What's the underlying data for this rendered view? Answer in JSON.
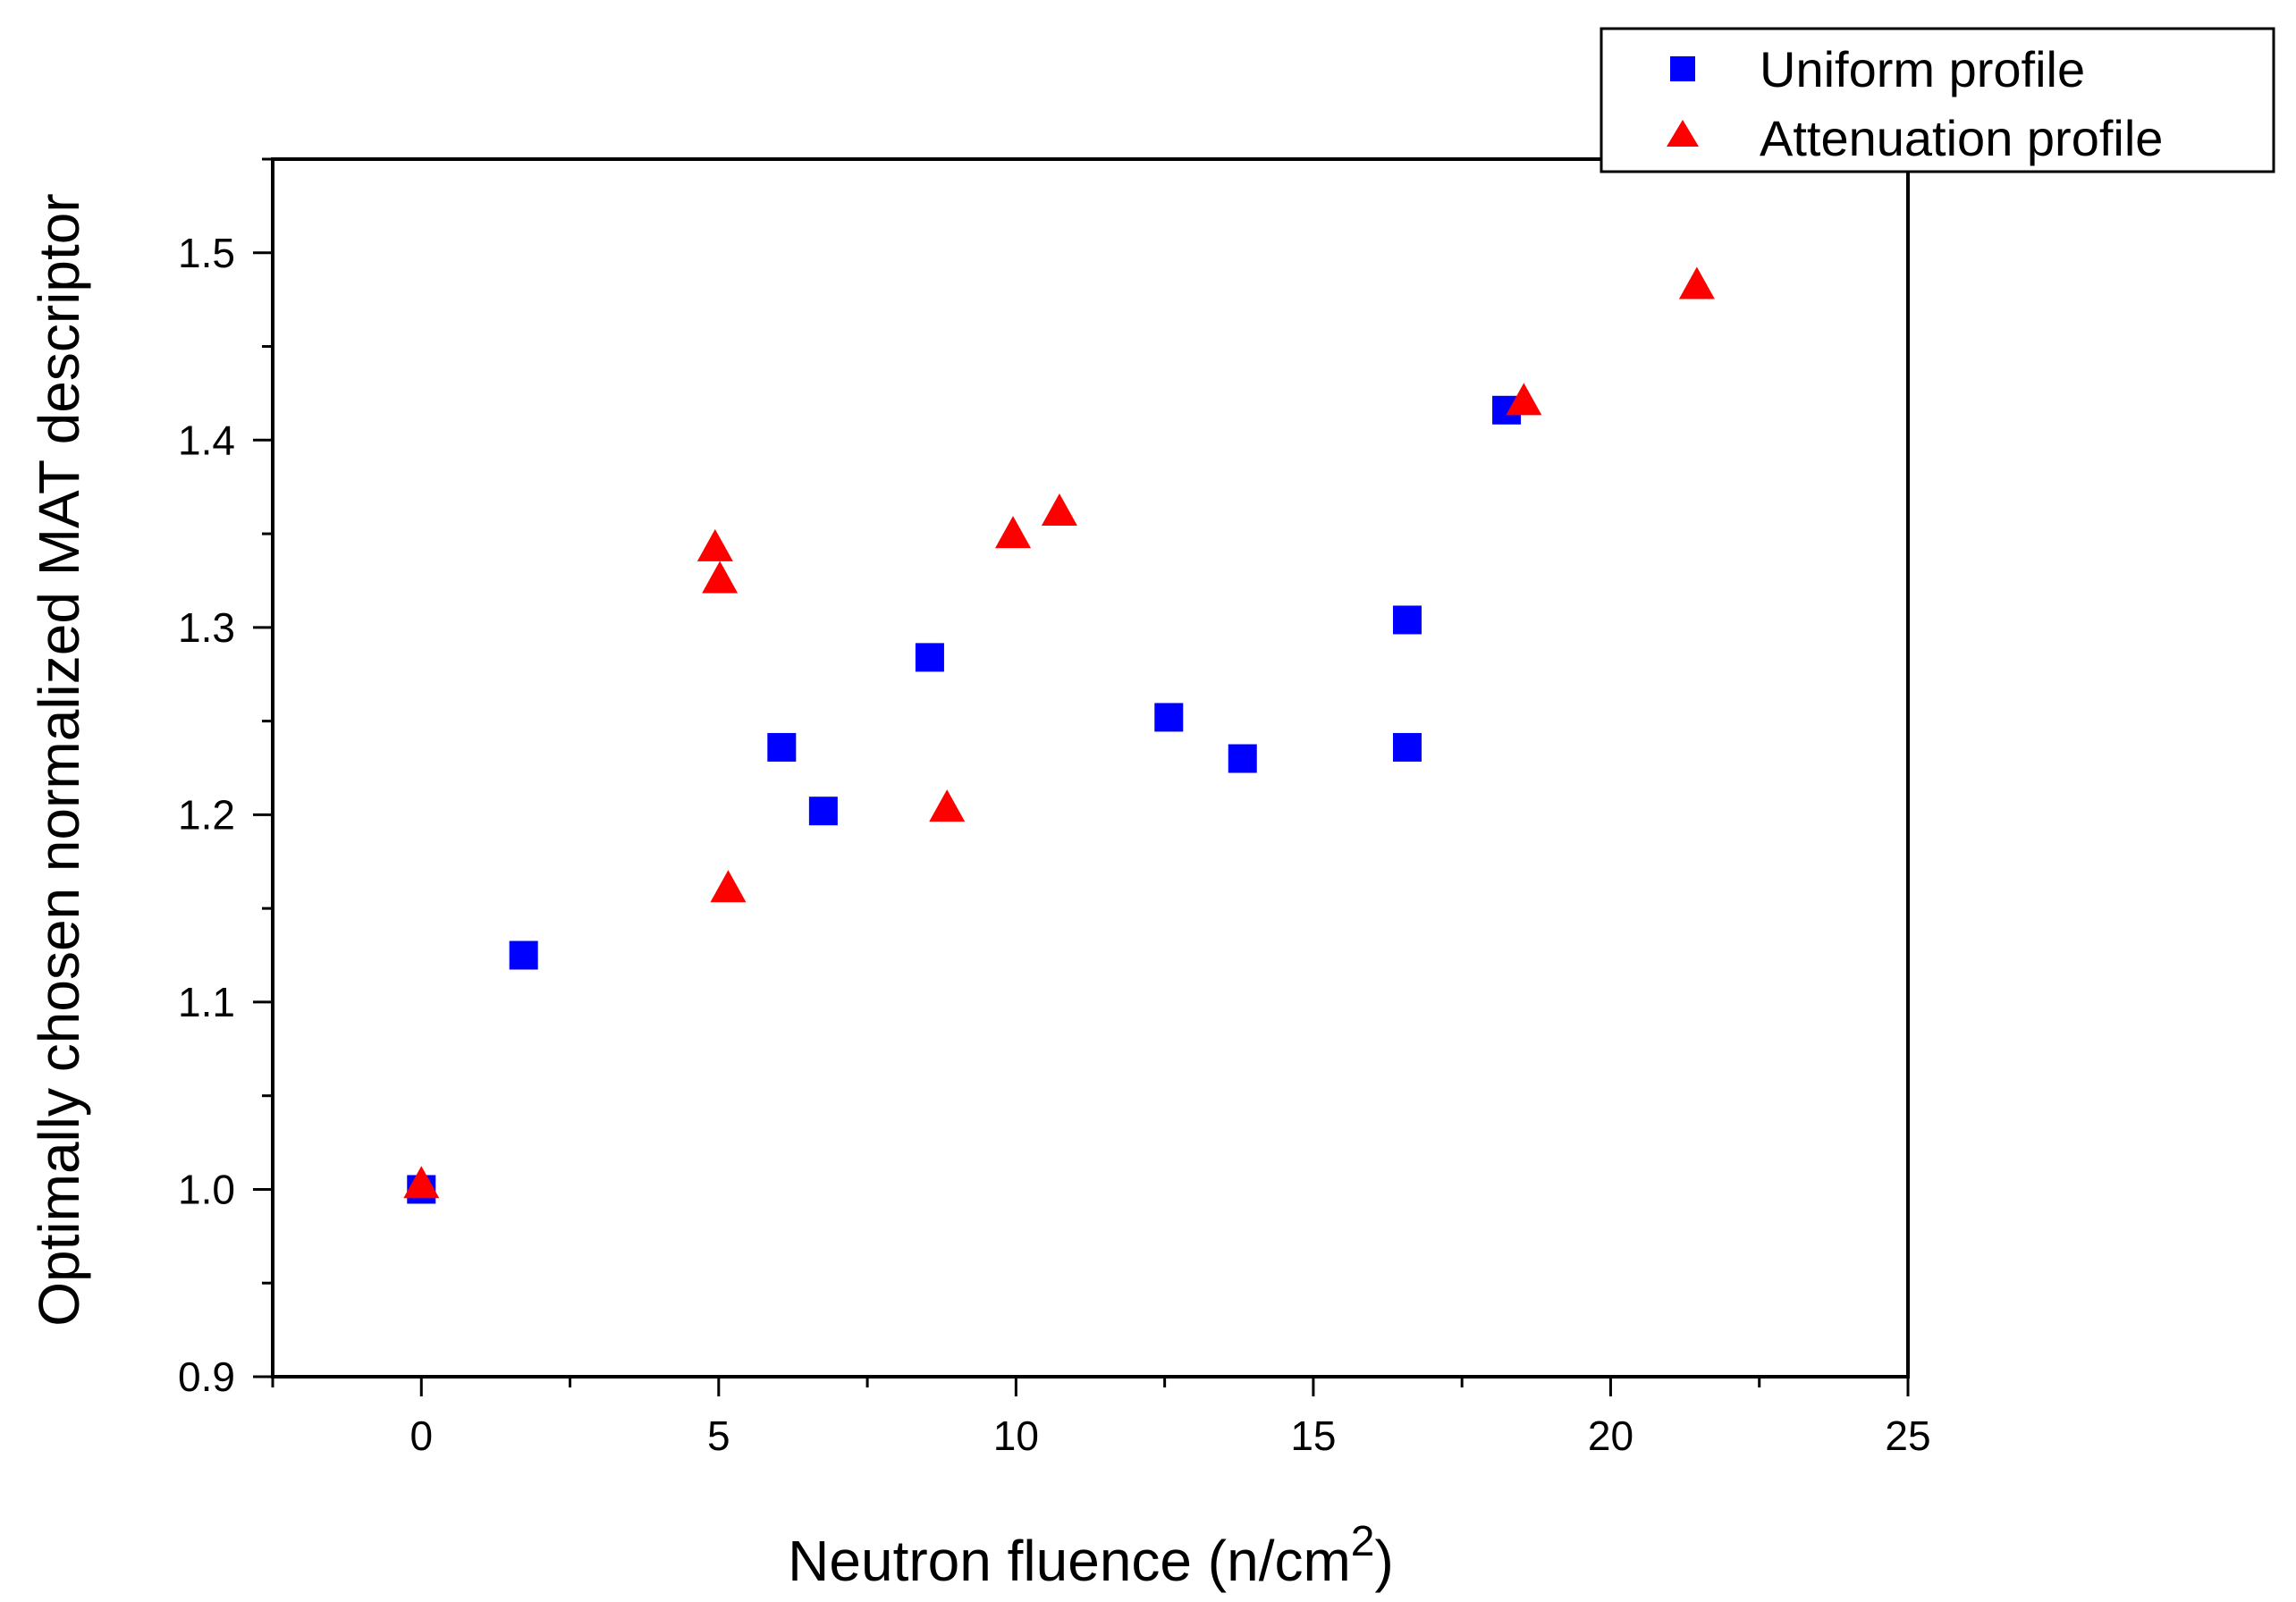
{
  "chart_data": {
    "type": "scatter",
    "xlabel": "Neutron fluence  (n/cm",
    "xlabel_superscript": "2",
    "xlabel_suffix": ")",
    "ylabel": "Optimally chosen normalized MAT descriptor",
    "xlim": [
      -2.5,
      25
    ],
    "ylim": [
      0.9,
      1.55
    ],
    "x_ticks": [
      "0",
      "5",
      "10",
      "15",
      "20",
      "25"
    ],
    "y_ticks": [
      "0.9",
      "1.0",
      "1.1",
      "1.2",
      "1.3",
      "1.4",
      "1.5"
    ],
    "legend_position": "top-right",
    "series": [
      {
        "name": "Uniform profile",
        "marker": "square",
        "color": "#0000ff",
        "points": [
          [
            0,
            1.0
          ],
          [
            1.72,
            1.125
          ],
          [
            6.06,
            1.236
          ],
          [
            6.76,
            1.202
          ],
          [
            8.55,
            1.284
          ],
          [
            12.57,
            1.252
          ],
          [
            13.81,
            1.23
          ],
          [
            16.58,
            1.304
          ],
          [
            16.58,
            1.236
          ],
          [
            18.25,
            1.416
          ]
        ]
      },
      {
        "name": "Attenuation profile",
        "marker": "triangle",
        "color": "#ff0000",
        "points": [
          [
            0,
            1.002
          ],
          [
            4.94,
            1.342
          ],
          [
            5.02,
            1.325
          ],
          [
            5.16,
            1.16
          ],
          [
            8.84,
            1.203
          ],
          [
            9.95,
            1.349
          ],
          [
            10.73,
            1.361
          ],
          [
            18.54,
            1.42
          ],
          [
            21.45,
            1.482
          ]
        ]
      }
    ]
  }
}
